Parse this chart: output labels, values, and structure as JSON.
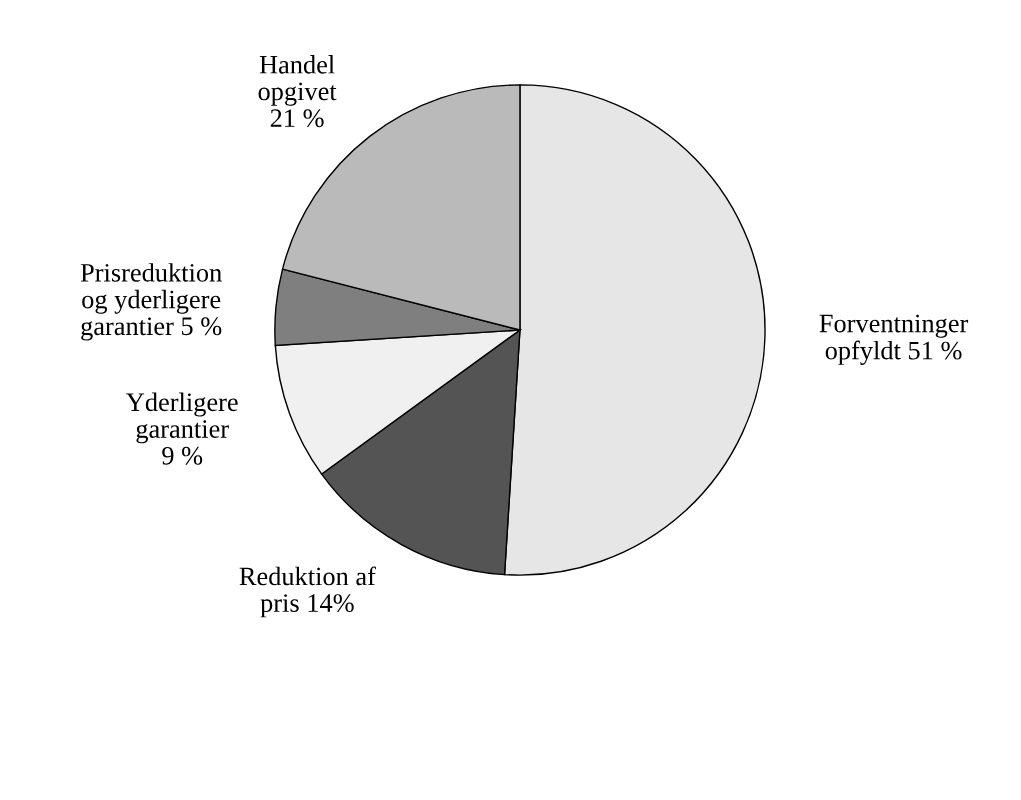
{
  "chart_data": {
    "type": "pie",
    "categories": [
      "Forventninger\nopfyldt 51 %",
      "Reduktion af\npris 14%",
      "Yderligere\ngarantier\n9 %",
      "Prisreduktion\nog yderligere\ngarantier 5 %",
      "Handel\nopgivet\n21 %"
    ],
    "values": [
      51,
      14,
      9,
      5,
      21
    ],
    "colors": [
      "#e6e6e6",
      "#545454",
      "#f0f0f0",
      "#7f7f7f",
      "#bababa"
    ]
  }
}
